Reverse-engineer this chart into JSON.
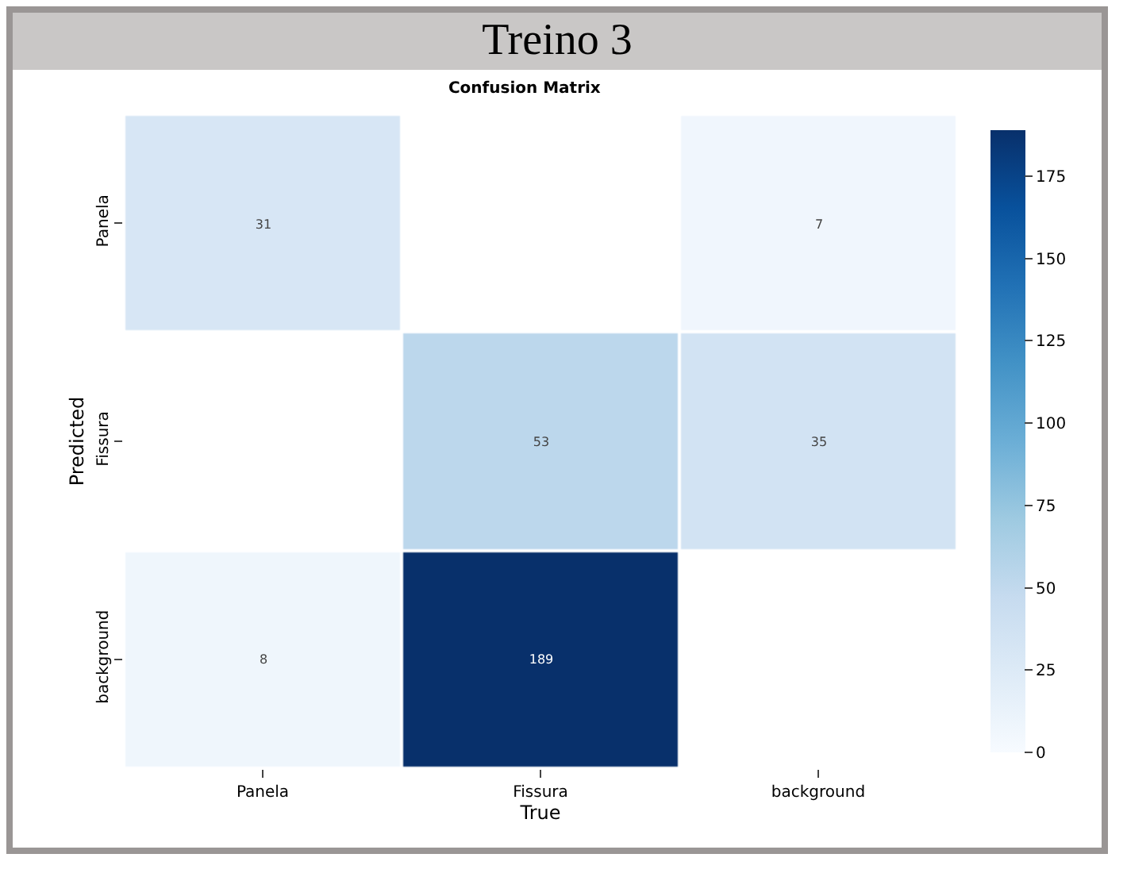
{
  "chart_data": {
    "type": "heatmap",
    "title": "Treino 3",
    "subtitle": "Confusion Matrix",
    "xlabel": "True",
    "ylabel": "Predicted",
    "categories": [
      "Panela",
      "Fissura",
      "background"
    ],
    "y_categories": [
      "Panela",
      "Fissura",
      "background"
    ],
    "cells": [
      [
        31,
        null,
        7
      ],
      [
        null,
        53,
        35
      ],
      [
        8,
        189,
        null
      ]
    ],
    "data_labels": true,
    "clim": [
      0,
      189
    ],
    "cticks": [
      0,
      25,
      50,
      75,
      100,
      125,
      150,
      175
    ]
  }
}
